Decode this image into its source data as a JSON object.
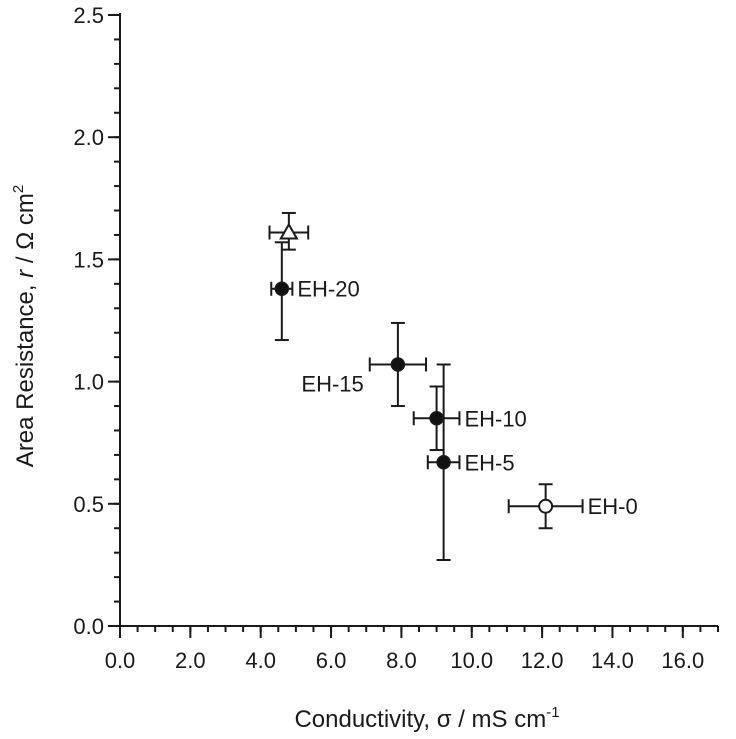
{
  "chart_data": {
    "type": "scatter",
    "title": "",
    "xlabel": {
      "prefix": "Conductivity, ",
      "symbol": "σ",
      "unit": " / mS cm",
      "sup": "-1"
    },
    "ylabel": {
      "prefix": "Area Resistance, ",
      "symbol": "r",
      "unit": " / Ω cm",
      "sup": "2"
    },
    "xlim": [
      0,
      17
    ],
    "ylim": [
      0,
      2.5
    ],
    "x_ticks": [
      0,
      2,
      4,
      6,
      8,
      10,
      12,
      14,
      16
    ],
    "x_tick_labels": [
      "0.0",
      "2.0",
      "4.0",
      "6.0",
      "8.0",
      "10.0",
      "12.0",
      "14.0",
      "16.0"
    ],
    "y_ticks": [
      0,
      0.5,
      1.0,
      1.5,
      2.0,
      2.5
    ],
    "y_tick_labels": [
      "0.0",
      "0.5",
      "1.0",
      "1.5",
      "2.0",
      "2.5"
    ],
    "x_minor_step": 0.5,
    "y_minor_step": 0.1,
    "grid": false,
    "legend": "none",
    "points": [
      {
        "label": "EH-0",
        "x": 12.1,
        "y": 0.49,
        "xerr": 1.05,
        "y_low": 0.4,
        "y_high": 0.58,
        "marker": "open-circle",
        "label_side": "right"
      },
      {
        "label": "EH-5",
        "x": 9.2,
        "y": 0.67,
        "xerr": 0.45,
        "y_low": 0.27,
        "y_high": 1.07,
        "marker": "filled-circle",
        "label_side": "right"
      },
      {
        "label": "EH-10",
        "x": 9.0,
        "y": 0.85,
        "xerr": 0.65,
        "y_low": 0.72,
        "y_high": 0.98,
        "marker": "filled-circle",
        "label_side": "right"
      },
      {
        "label": "EH-15",
        "x": 7.9,
        "y": 1.07,
        "xerr": 0.8,
        "y_low": 0.9,
        "y_high": 1.24,
        "marker": "filled-circle",
        "label_side": "left"
      },
      {
        "label": "EH-20",
        "x": 4.6,
        "y": 1.38,
        "xerr": 0.3,
        "y_low": 1.17,
        "y_high": 1.57,
        "marker": "filled-circle",
        "label_side": "right"
      },
      {
        "label": "",
        "x": 4.8,
        "y": 1.61,
        "xerr": 0.55,
        "y_low": 1.54,
        "y_high": 1.69,
        "marker": "open-triangle",
        "label_side": "none"
      }
    ],
    "colors": {
      "axis": "#1a1a1a",
      "marker_fill": "#111111",
      "open_fill": "#ffffff"
    }
  }
}
